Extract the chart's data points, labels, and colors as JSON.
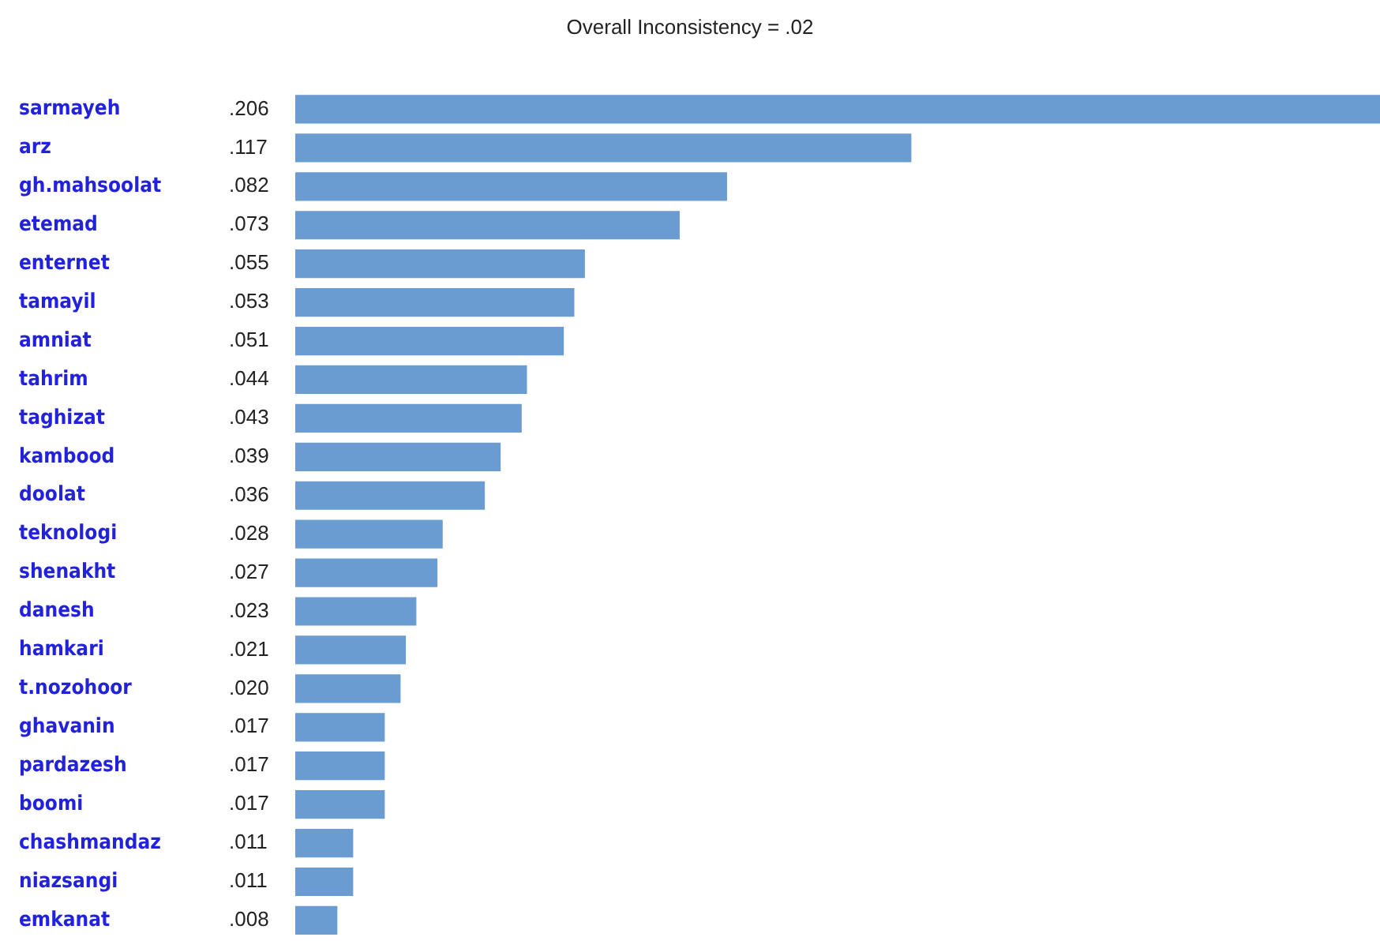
{
  "chart_data": {
    "type": "bar",
    "orientation": "horizontal",
    "title": "Overall Inconsistency = .02",
    "categories": [
      "sarmayeh",
      "arz",
      "gh.mahsoolat",
      "etemad",
      "enternet",
      "tamayil",
      "amniat",
      "tahrim",
      "taghizat",
      "kambood",
      "doolat",
      "teknologi",
      "shenakht",
      "danesh",
      "hamkari",
      "t.nozohoor",
      "ghavanin",
      "pardazesh",
      "boomi",
      "chashmandaz",
      "niazsangi",
      "emkanat"
    ],
    "values": [
      0.206,
      0.117,
      0.082,
      0.073,
      0.055,
      0.053,
      0.051,
      0.044,
      0.043,
      0.039,
      0.036,
      0.028,
      0.027,
      0.023,
      0.021,
      0.02,
      0.017,
      0.017,
      0.017,
      0.011,
      0.011,
      0.008
    ],
    "value_labels": [
      ".206",
      ".117",
      ".082",
      ".073",
      ".055",
      ".053",
      ".051",
      ".044",
      ".043",
      ".039",
      ".036",
      ".028",
      ".027",
      ".023",
      ".021",
      ".020",
      ".017",
      ".017",
      ".017",
      ".011",
      ".011",
      ".008"
    ],
    "color": "#6a9bd1",
    "grid": false,
    "legend": false
  }
}
